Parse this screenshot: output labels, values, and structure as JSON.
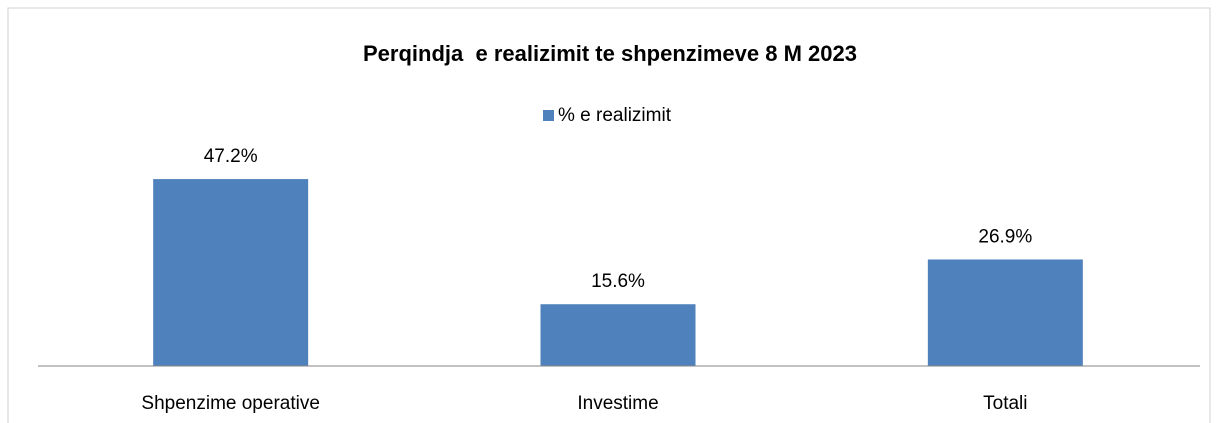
{
  "chart_data": {
    "type": "bar",
    "title": "Perqindja  e realizimit te shpenzimeve 8 M 2023",
    "categories": [
      "Shpenzime operative",
      "Investime",
      "Totali"
    ],
    "series": [
      {
        "name": "% e realizimit",
        "color": "#4f81bd",
        "values": [
          47.2,
          15.6,
          26.9
        ],
        "value_labels": [
          "47.2%",
          "15.6%",
          "26.9%"
        ]
      }
    ],
    "legend": "top"
  }
}
